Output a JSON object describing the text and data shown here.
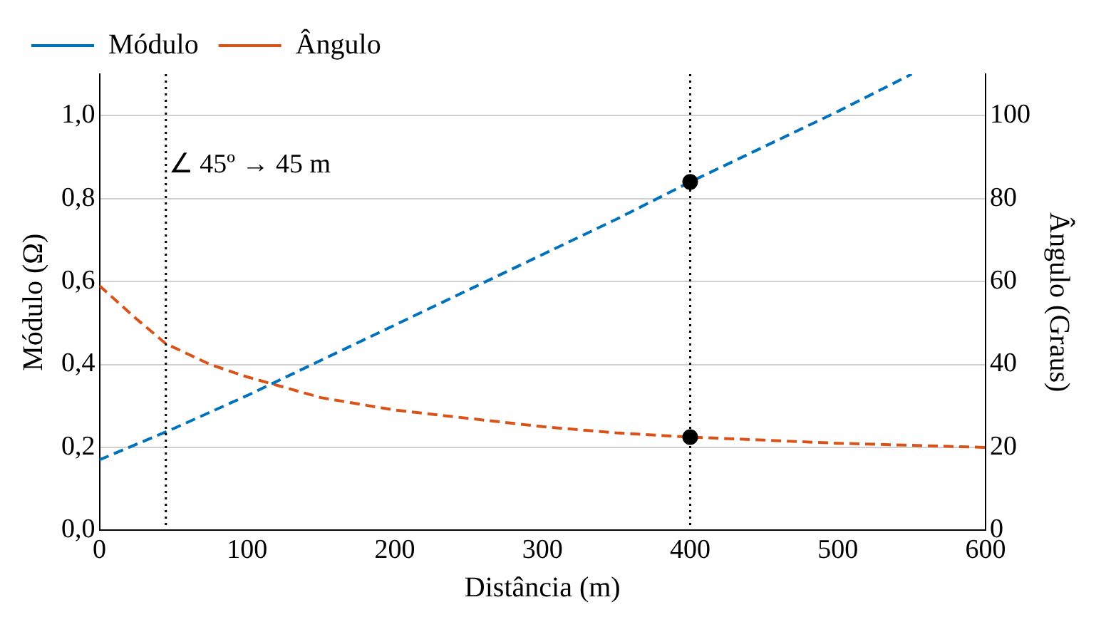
{
  "chart_data": {
    "type": "line",
    "xlabel": "Distância (m)",
    "ylabel": "Módulo (Ω)",
    "y2label": "Ângulo (Graus)",
    "series": [
      {
        "name": "Módulo",
        "color": "#0072bd",
        "line_style": "dashed",
        "x": [
          0,
          50,
          100,
          150,
          200,
          250,
          300,
          350,
          400,
          450,
          500,
          550
        ],
        "values": [
          0.17,
          0.245,
          0.325,
          0.41,
          0.495,
          0.58,
          0.665,
          0.75,
          0.84,
          0.925,
          1.01,
          1.1
        ]
      },
      {
        "name": "Ângulo",
        "color": "#d95319",
        "line_style": "dashed",
        "axis": "y2",
        "x": [
          0,
          25,
          45,
          75,
          100,
          150,
          200,
          250,
          300,
          350,
          400,
          500,
          600
        ],
        "values": [
          59,
          51,
          45,
          40,
          37,
          32,
          29,
          27,
          25,
          23.5,
          22.5,
          21,
          20
        ]
      },
      {
        "type": "scatter",
        "color": "#000000",
        "marker": "circle",
        "x": [
          400
        ],
        "values": [
          0.84
        ]
      },
      {
        "type": "scatter",
        "color": "#000000",
        "marker": "circle",
        "axis": "y2",
        "x": [
          400
        ],
        "values": [
          22.5
        ]
      }
    ],
    "xlim": [
      0,
      600
    ],
    "xticks": [
      0,
      100,
      200,
      300,
      400,
      500,
      600
    ],
    "ylim": [
      0,
      1.1
    ],
    "yticks": [
      {
        "value": 0,
        "label": "0,0"
      },
      {
        "value": 0.2,
        "label": "0,2"
      },
      {
        "value": 0.4,
        "label": "0,4"
      },
      {
        "value": 0.6,
        "label": "0,6"
      },
      {
        "value": 0.8,
        "label": "0,8"
      },
      {
        "value": 1,
        "label": "1,0"
      }
    ],
    "y2lim": [
      0,
      110
    ],
    "y2ticks": [
      0,
      20,
      40,
      60,
      80,
      100
    ],
    "ref_lines": [
      {
        "axis": "x",
        "value": 45,
        "color": "#000000",
        "line_style": "dotted"
      },
      {
        "axis": "x",
        "value": 400,
        "color": "#000000",
        "line_style": "dotted"
      }
    ],
    "annotations": [
      {
        "text": "∠ 45º → 45 m",
        "x": 45,
        "y": 0.88
      }
    ],
    "grid": "y",
    "legend": "top",
    "marker": "none"
  }
}
